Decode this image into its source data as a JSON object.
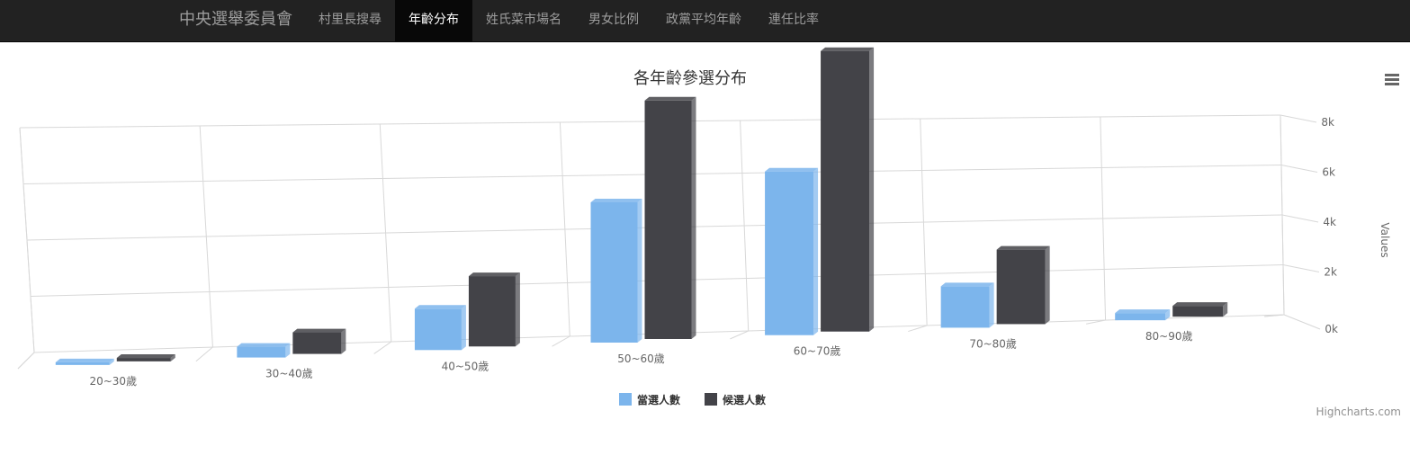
{
  "navbar": {
    "brand": "中央選舉委員會",
    "items": [
      {
        "label": "村里長搜尋",
        "active": false
      },
      {
        "label": "年齡分布",
        "active": true
      },
      {
        "label": "姓氏菜市場名",
        "active": false
      },
      {
        "label": "男女比例",
        "active": false
      },
      {
        "label": "政黨平均年齡",
        "active": false
      },
      {
        "label": "連任比率",
        "active": false
      }
    ]
  },
  "chart_data": {
    "type": "bar",
    "title": "各年齡參選分布",
    "xlabel": "",
    "ylabel": "Values",
    "categories": [
      "20~30歲",
      "30~40歲",
      "40~50歲",
      "50~60歲",
      "60~70歲",
      "70~80歲",
      "80~90歲"
    ],
    "y_ticks": [
      "0k",
      "2k",
      "4k",
      "6k",
      "8k"
    ],
    "ylim": [
      0,
      8000
    ],
    "series": [
      {
        "name": "當選人數",
        "color": "#7cb5ec",
        "values": [
          20,
          300,
          1000,
          3000,
          3500,
          1000,
          200
        ]
      },
      {
        "name": "候選人數",
        "color": "#434348",
        "values": [
          100,
          600,
          1700,
          5100,
          6000,
          1800,
          300
        ]
      }
    ],
    "grid": true,
    "legend_position": "bottom-center",
    "credits": "Highcharts.com"
  },
  "icons": {
    "menu": "hamburger-menu-icon"
  }
}
